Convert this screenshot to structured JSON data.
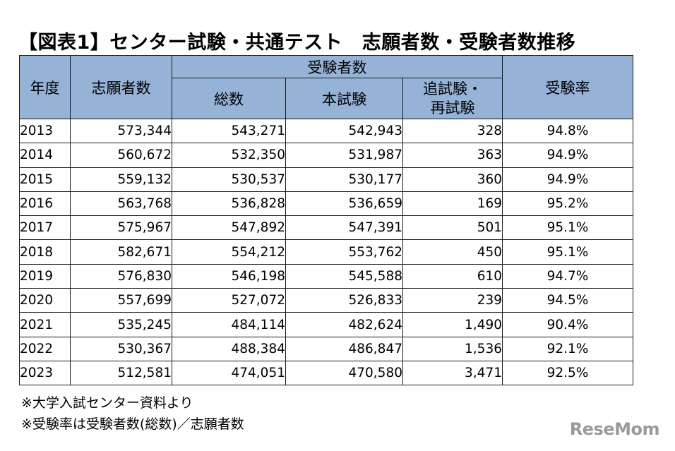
{
  "title": "【図表1】センター試験・共通テスト　志願者数・受験者数推移",
  "headers": {
    "year": "年度",
    "applicants": "志願者数",
    "examinees": "受験者数",
    "total": "総数",
    "main_exam": "本試験",
    "makeup_exam_line1": "追試験・",
    "makeup_exam_line2": "再試験",
    "rate": "受験率"
  },
  "rows": [
    {
      "year": "2013",
      "applicants": "573,344",
      "total": "543,271",
      "main": "542,943",
      "makeup": "328",
      "rate": "94.8%"
    },
    {
      "year": "2014",
      "applicants": "560,672",
      "total": "532,350",
      "main": "531,987",
      "makeup": "363",
      "rate": "94.9%"
    },
    {
      "year": "2015",
      "applicants": "559,132",
      "total": "530,537",
      "main": "530,177",
      "makeup": "360",
      "rate": "94.9%"
    },
    {
      "year": "2016",
      "applicants": "563,768",
      "total": "536,828",
      "main": "536,659",
      "makeup": "169",
      "rate": "95.2%"
    },
    {
      "year": "2017",
      "applicants": "575,967",
      "total": "547,892",
      "main": "547,391",
      "makeup": "501",
      "rate": "95.1%"
    },
    {
      "year": "2018",
      "applicants": "582,671",
      "total": "554,212",
      "main": "553,762",
      "makeup": "450",
      "rate": "95.1%"
    },
    {
      "year": "2019",
      "applicants": "576,830",
      "total": "546,198",
      "main": "545,588",
      "makeup": "610",
      "rate": "94.7%"
    },
    {
      "year": "2020",
      "applicants": "557,699",
      "total": "527,072",
      "main": "526,833",
      "makeup": "239",
      "rate": "94.5%"
    },
    {
      "year": "2021",
      "applicants": "535,245",
      "total": "484,114",
      "main": "482,624",
      "makeup": "1,490",
      "rate": "90.4%"
    },
    {
      "year": "2022",
      "applicants": "530,367",
      "total": "488,384",
      "main": "486,847",
      "makeup": "1,536",
      "rate": "92.1%"
    },
    {
      "year": "2023",
      "applicants": "512,581",
      "total": "474,051",
      "main": "470,580",
      "makeup": "3,471",
      "rate": "92.5%"
    }
  ],
  "notes": [
    "※大学入試センター資料より",
    "※受験率は受験者数(総数)／志願者数"
  ],
  "logo": "ReseMom",
  "colors": {
    "header_bg": "#95b3d7",
    "border": "#1a1a1a",
    "logo": "#9a9a9a"
  }
}
